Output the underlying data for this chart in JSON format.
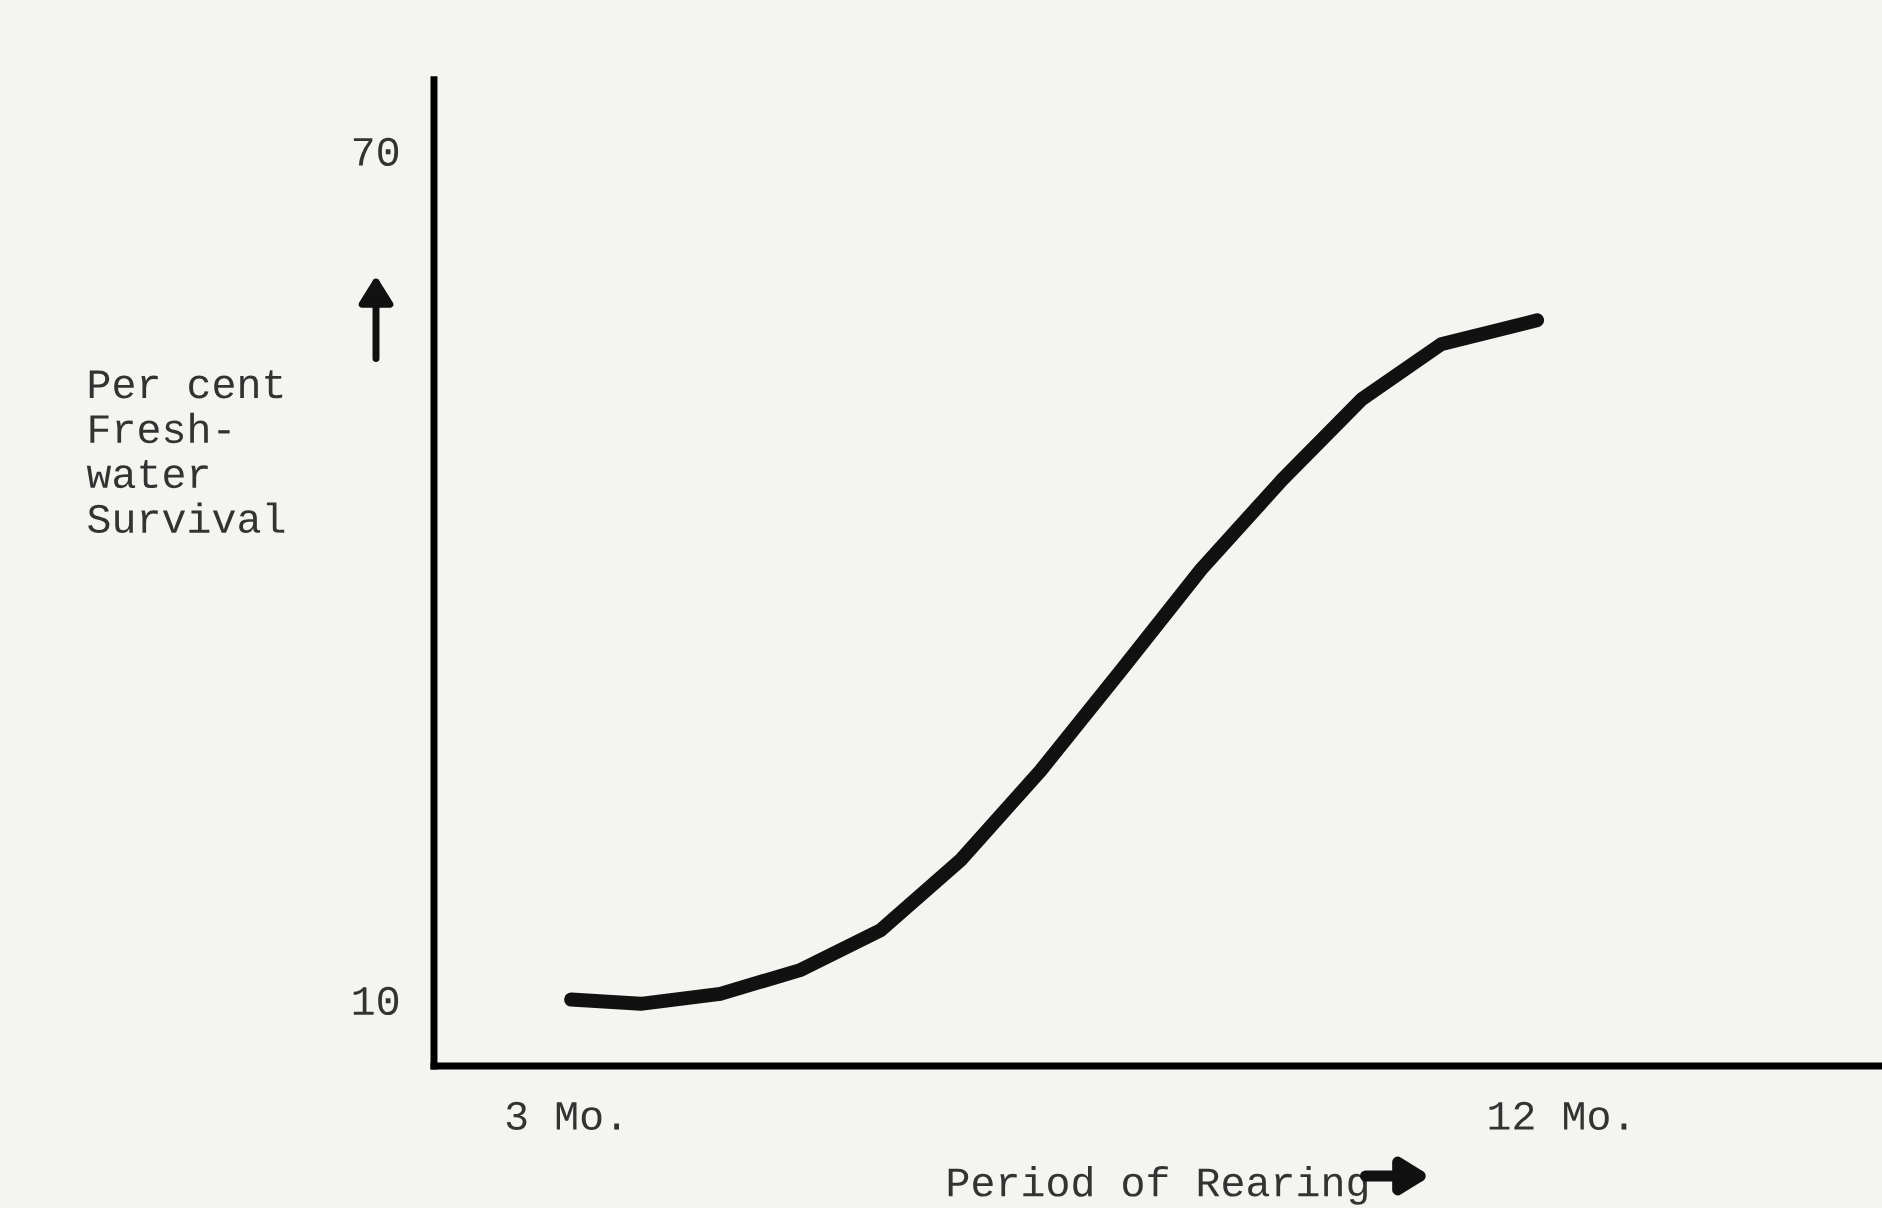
{
  "chart_data": {
    "type": "line",
    "xlabel": "Period of Rearing",
    "ylabel": "Per cent\nFresh-\nwater\nSurvival",
    "x": [
      3.04,
      3.67,
      4.39,
      5.12,
      5.84,
      6.57,
      7.29,
      8.02,
      8.74,
      9.47,
      10.19,
      10.91,
      11.78
    ],
    "series": [
      {
        "color": "#111111",
        "values": [
          10.0,
          9.7,
          10.4,
          12.1,
          14.9,
          19.9,
          26.2,
          33.3,
          40.4,
          46.7,
          52.4,
          56.3,
          58.0
        ]
      }
    ],
    "xlim": [
      1.8,
      14.9
    ],
    "ylim": [
      5.3,
      75
    ],
    "xticks": [
      {
        "value": 3,
        "label": "3 Mo."
      },
      {
        "value": 12,
        "label": "12 Mo."
      }
    ],
    "yticks": [
      10,
      70
    ],
    "grid": false,
    "legend": false,
    "marker": "none",
    "line_style": "solid"
  }
}
